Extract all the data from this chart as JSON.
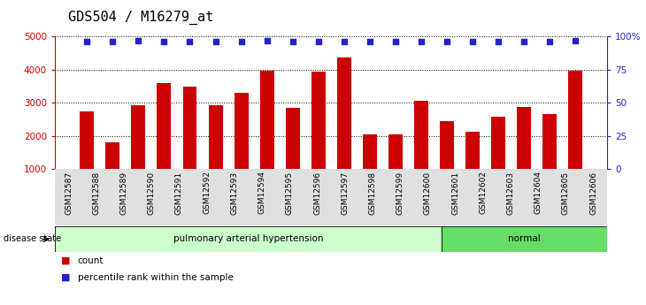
{
  "title": "GDS504 / M16279_at",
  "categories": [
    "GSM12587",
    "GSM12588",
    "GSM12589",
    "GSM12590",
    "GSM12591",
    "GSM12592",
    "GSM12593",
    "GSM12594",
    "GSM12595",
    "GSM12596",
    "GSM12597",
    "GSM12598",
    "GSM12599",
    "GSM12600",
    "GSM12601",
    "GSM12602",
    "GSM12603",
    "GSM12604",
    "GSM12605",
    "GSM12606"
  ],
  "bar_values": [
    2750,
    1820,
    2940,
    3610,
    3490,
    2930,
    3310,
    3980,
    2860,
    3940,
    4360,
    2040,
    2060,
    3060,
    2440,
    2140,
    2590,
    2880,
    2670,
    3960
  ],
  "percentile_values": [
    96,
    96,
    97,
    96,
    96,
    96,
    96,
    97,
    96,
    96,
    96,
    96,
    96,
    96,
    96,
    96,
    96,
    96,
    96,
    97
  ],
  "bar_color": "#cc0000",
  "dot_color": "#2222cc",
  "ylim_min": 1000,
  "ylim_max": 5000,
  "yticks": [
    1000,
    2000,
    3000,
    4000,
    5000
  ],
  "y2ticks": [
    0,
    25,
    50,
    75,
    100
  ],
  "group1_label": "pulmonary arterial hypertension",
  "group2_label": "normal",
  "group1_count": 14,
  "group2_count": 6,
  "disease_state_label": "disease state",
  "legend_count_label": "count",
  "legend_percentile_label": "percentile rank within the sample",
  "group1_bg_color": "#ccffcc",
  "group2_bg_color": "#66dd66",
  "title_fontsize": 11,
  "axis_color_left": "#cc0000",
  "axis_color_right": "#2222cc"
}
